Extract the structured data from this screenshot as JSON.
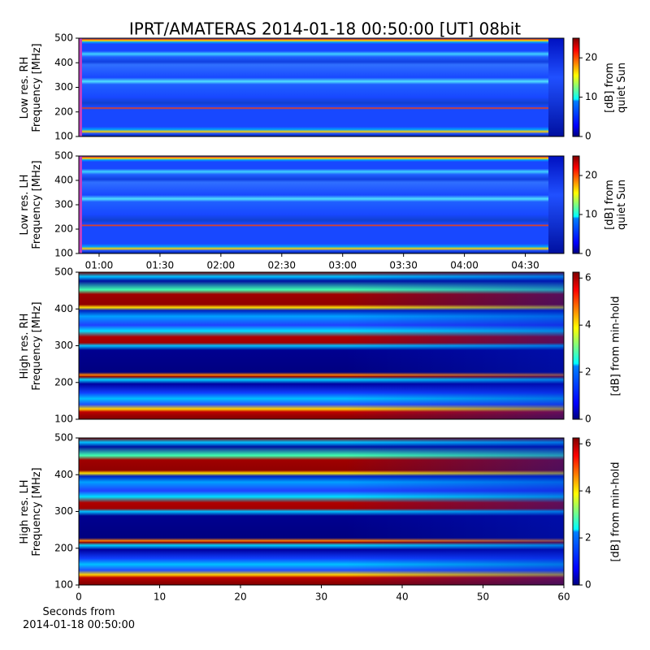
{
  "chart_data": [
    {
      "type": "heatmap",
      "title": "IPRT/AMATERAS 2014-01-18 00:50:00 [UT]   08bit",
      "ylabel": "Low res. RH\nFrequency [MHz]",
      "ylim": [
        100,
        500
      ],
      "yticks": [
        100,
        200,
        300,
        400,
        500
      ],
      "colorbar_label": "[dB] from\nquiet Sun",
      "clim": [
        0,
        25
      ],
      "cticks": [
        0,
        10,
        20
      ]
    },
    {
      "type": "heatmap",
      "ylabel": "Low res. LH\nFrequency [MHz]",
      "ylim": [
        100,
        500
      ],
      "yticks": [
        100,
        200,
        300,
        400,
        500
      ],
      "xlim": [
        50,
        289
      ],
      "xticks": [
        {
          "value": 60,
          "label": "01:00"
        },
        {
          "value": 90,
          "label": "01:30"
        },
        {
          "value": 120,
          "label": "02:00"
        },
        {
          "value": 150,
          "label": "02:30"
        },
        {
          "value": 180,
          "label": "03:00"
        },
        {
          "value": 210,
          "label": "03:30"
        },
        {
          "value": 240,
          "label": "04:00"
        },
        {
          "value": 270,
          "label": "04:30"
        }
      ],
      "colorbar_label": "[dB] from\nquiet Sun",
      "clim": [
        0,
        25
      ],
      "cticks": [
        0,
        10,
        20
      ]
    },
    {
      "type": "heatmap",
      "ylabel": "High res. RH\nFrequency [MHz]",
      "ylim": [
        100,
        500
      ],
      "yticks": [
        100,
        200,
        300,
        400,
        500
      ],
      "colorbar_label": "[dB] from min-hold",
      "clim": [
        0,
        6.25
      ],
      "cticks": [
        0,
        2,
        4,
        6
      ]
    },
    {
      "type": "heatmap",
      "ylabel": "High res. LH\nFrequency [MHz]",
      "ylim": [
        100,
        500
      ],
      "yticks": [
        100,
        200,
        300,
        400,
        500
      ],
      "xlim": [
        0,
        60
      ],
      "xticks": [
        0,
        10,
        20,
        30,
        40,
        50,
        60
      ],
      "xlabel": "Seconds from\n2014-01-18 00:50:00",
      "colorbar_label": "[dB] from min-hold",
      "clim": [
        0,
        6.25
      ],
      "cticks": [
        0,
        2,
        4,
        6
      ]
    }
  ]
}
